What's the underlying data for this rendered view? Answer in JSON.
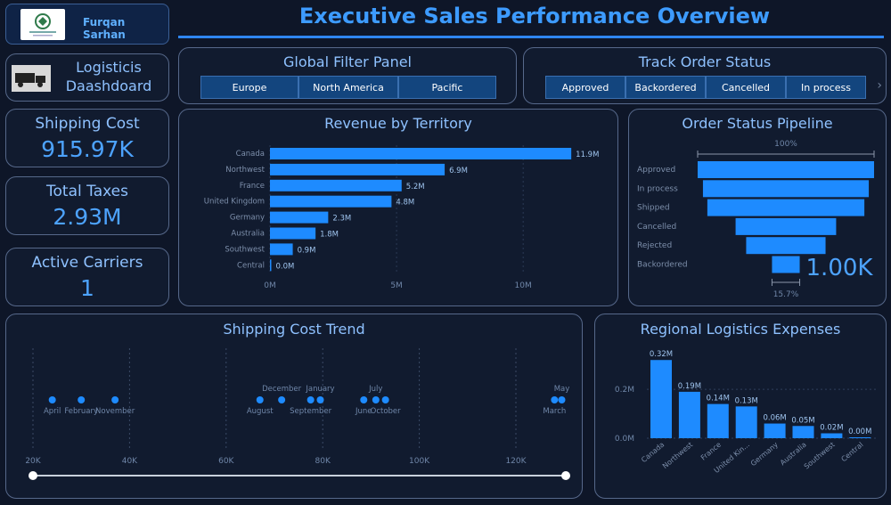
{
  "header": {
    "author": "Furqan Sarhan",
    "title": "Executive Sales Performance Overview",
    "logo_icon": "university-seal-icon"
  },
  "sidebar": {
    "brand": {
      "line1": "Logisticis",
      "line2": "Daashdoard",
      "icon": "truck-icon"
    },
    "kpis": [
      {
        "label": "Shipping Cost",
        "value": "915.97K"
      },
      {
        "label": "Total Taxes",
        "value": "2.93M"
      },
      {
        "label": "Active Carriers",
        "value": "1"
      }
    ]
  },
  "filters": {
    "title": "Global Filter Panel",
    "options": [
      "Europe",
      "North America",
      "Pacific"
    ]
  },
  "order_status_filter": {
    "title": "Track Order Status",
    "options": [
      "Approved",
      "Backordered",
      "Cancelled",
      "In process"
    ],
    "next_icon": "chevron-right-icon"
  },
  "colors": {
    "accent": "#1e8bff",
    "background": "#0e1628",
    "card": "#111b2f",
    "title": "#8ec1ff"
  },
  "chart_data": [
    {
      "id": "revenue",
      "type": "bar",
      "orientation": "horizontal",
      "title": "Revenue by Territory",
      "categories": [
        "Canada",
        "Northwest",
        "France",
        "United Kingdom",
        "Germany",
        "Australia",
        "Southwest",
        "Central"
      ],
      "values": [
        11.9,
        6.9,
        5.2,
        4.8,
        2.3,
        1.8,
        0.9,
        0.0
      ],
      "data_labels": [
        "11.9M",
        "6.9M",
        "5.2M",
        "4.8M",
        "2.3M",
        "1.8M",
        "0.9M",
        "0.0M"
      ],
      "xlim": [
        0,
        12
      ],
      "ticks": [
        0,
        5,
        10
      ],
      "tick_labels": [
        "0M",
        "5M",
        "10M"
      ]
    },
    {
      "id": "pipeline",
      "type": "funnel",
      "title": "Order Status Pipeline",
      "categories": [
        "Approved",
        "In process",
        "Shipped",
        "Cancelled",
        "Rejected",
        "Backordered"
      ],
      "values": [
        100,
        94,
        89,
        57,
        45,
        15.7
      ],
      "top_label": "100%",
      "bottom_label": "15.7%",
      "total_label": "1.00K"
    },
    {
      "id": "trend",
      "type": "scatter",
      "title": "Shipping Cost Trend",
      "x_ticks": [
        20,
        40,
        60,
        80,
        100,
        120
      ],
      "x_tick_labels": [
        "20K",
        "40K",
        "60K",
        "80K",
        "100K",
        "120K"
      ],
      "xlim": [
        20,
        130
      ],
      "points": [
        {
          "x": 24,
          "label": "April",
          "pos": "below"
        },
        {
          "x": 30,
          "label": "February",
          "pos": "below"
        },
        {
          "x": 37,
          "label": "November",
          "pos": "below"
        },
        {
          "x": 67,
          "label": "August",
          "pos": "below"
        },
        {
          "x": 71.5,
          "label": "December",
          "pos": "above"
        },
        {
          "x": 77.5,
          "label": "September",
          "pos": "below"
        },
        {
          "x": 79.5,
          "label": "January",
          "pos": "above"
        },
        {
          "x": 88.5,
          "label": "June",
          "pos": "below"
        },
        {
          "x": 91,
          "label": "July",
          "pos": "above"
        },
        {
          "x": 93,
          "label": "October",
          "pos": "below"
        },
        {
          "x": 128,
          "label": "March",
          "pos": "below"
        },
        {
          "x": 129.5,
          "label": "May",
          "pos": "above"
        }
      ]
    },
    {
      "id": "expenses",
      "type": "bar",
      "title": "Regional Logistics Expenses",
      "categories": [
        "Canada",
        "Northwest",
        "France",
        "United Kin...",
        "Germany",
        "Australia",
        "Southwest",
        "Central"
      ],
      "values": [
        0.32,
        0.19,
        0.14,
        0.13,
        0.06,
        0.05,
        0.02,
        0.0
      ],
      "data_labels": [
        "0.32M",
        "0.19M",
        "0.14M",
        "0.13M",
        "0.06M",
        "0.05M",
        "0.02M",
        "0.00M"
      ],
      "ylim": [
        0,
        0.35
      ],
      "ticks": [
        0,
        0.2
      ],
      "tick_labels": [
        "0.0M",
        "0.2M"
      ]
    }
  ]
}
